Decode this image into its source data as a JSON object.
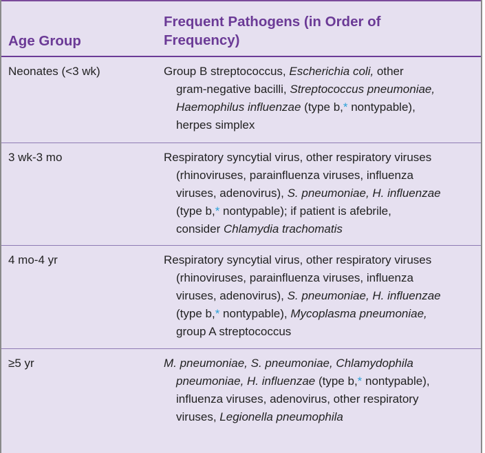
{
  "header": {
    "age_group": "Age Group",
    "pathogens_line1": "Frequent Pathogens (in Order of",
    "pathogens_line2": "Frequency)"
  },
  "colors": {
    "accent": "#6b3a96",
    "background": "#e6e0f0",
    "footnote_marker": "#2aa0d8"
  },
  "rows": [
    {
      "age": "Neonates (<3 wk)",
      "lines": [
        [
          "Group B streptococcus, ",
          "Escherichia coli,",
          " other"
        ],
        [
          "gram-negative bacilli, ",
          "Streptococcus pneumoniae,"
        ],
        [
          "Haemophilus influenzae",
          " (type b,",
          "*",
          " nontypable),"
        ],
        [
          "herpes simplex"
        ]
      ]
    },
    {
      "age": "3 wk-3 mo",
      "lines": [
        [
          "Respiratory syncytial virus, other respiratory viruses"
        ],
        [
          "(rhinoviruses, parainfluenza viruses, influenza"
        ],
        [
          "viruses, adenovirus), ",
          "S. pneumoniae, H. influenzae"
        ],
        [
          "(type b,",
          "*",
          " nontypable); if patient is afebrile,"
        ],
        [
          "consider ",
          "Chlamydia trachomatis"
        ]
      ]
    },
    {
      "age": "4 mo-4 yr",
      "lines": [
        [
          "Respiratory syncytial virus, other respiratory viruses"
        ],
        [
          "(rhinoviruses, parainfluenza viruses, influenza"
        ],
        [
          "viruses, adenovirus), ",
          "S. pneumoniae, H. influenzae"
        ],
        [
          "(type b,",
          "*",
          " nontypable), ",
          "Mycoplasma pneumoniae,"
        ],
        [
          "group A streptococcus"
        ]
      ]
    },
    {
      "age": "≥5 yr",
      "lines": [
        [
          "M. pneumoniae, S. pneumoniae, Chlamydophila"
        ],
        [
          "pneumoniae, H. influenzae",
          " (type b,",
          "*",
          " nontypable),"
        ],
        [
          "influenza viruses, adenovirus, other respiratory"
        ],
        [
          "viruses, ",
          "Legionella pneumophila"
        ]
      ]
    }
  ]
}
